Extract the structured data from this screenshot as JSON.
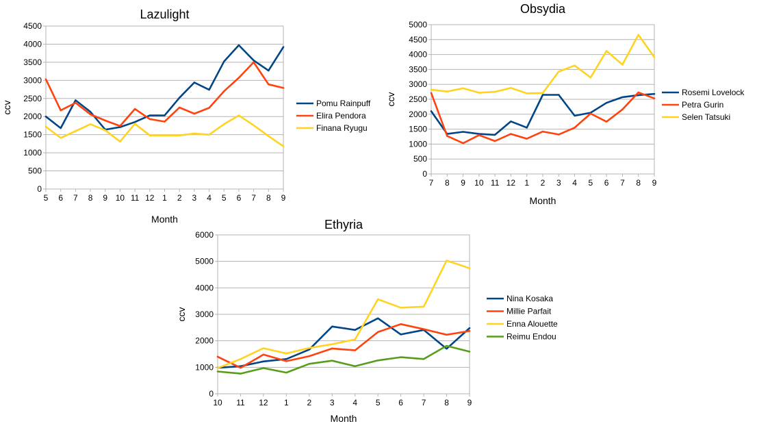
{
  "colors": {
    "blue": "#004586",
    "orange": "#ff420e",
    "yellow": "#ffd320",
    "green": "#579d1c",
    "grid": "#b3b3b3"
  },
  "chart_data": [
    {
      "type": "line",
      "title": "Lazulight",
      "xlabel": "Month",
      "ylabel": "ccv",
      "ylim": [
        0,
        4500
      ],
      "yticks": [
        0,
        500,
        1000,
        1500,
        2000,
        2500,
        3000,
        3500,
        4000,
        4500
      ],
      "grid": true,
      "legend": "right",
      "categories": [
        "5",
        "6",
        "7",
        "8",
        "9",
        "10",
        "11",
        "12",
        "1",
        "2",
        "3",
        "4",
        "5",
        "6",
        "7",
        "8",
        "9"
      ],
      "series": [
        {
          "name": "Pomu Rainpuff",
          "color": "#004586",
          "values": [
            2000,
            1680,
            2450,
            2130,
            1640,
            1710,
            1850,
            2030,
            2030,
            2520,
            2940,
            2740,
            3520,
            3970,
            3550,
            3270,
            3920
          ]
        },
        {
          "name": "Elira Pendora",
          "color": "#ff420e",
          "values": [
            3030,
            2170,
            2380,
            2060,
            1890,
            1740,
            2210,
            1930,
            1860,
            2250,
            2080,
            2240,
            2700,
            3070,
            3500,
            2890,
            2790
          ]
        },
        {
          "name": "Finana Ryugu",
          "color": "#ffd320",
          "values": [
            1720,
            1410,
            1600,
            1790,
            1620,
            1310,
            1800,
            1480,
            1480,
            1480,
            1530,
            1500,
            1790,
            2030,
            1760,
            1460,
            1180
          ]
        }
      ]
    },
    {
      "type": "line",
      "title": "Obsydia",
      "xlabel": "Month",
      "ylabel": "ccv",
      "ylim": [
        0,
        5000
      ],
      "yticks": [
        0,
        500,
        1000,
        1500,
        2000,
        2500,
        3000,
        3500,
        4000,
        4500,
        5000
      ],
      "grid": true,
      "legend": "right",
      "categories": [
        "7",
        "8",
        "9",
        "10",
        "11",
        "12",
        "1",
        "2",
        "3",
        "4",
        "5",
        "6",
        "7",
        "8",
        "9"
      ],
      "series": [
        {
          "name": "Rosemi Lovelock",
          "color": "#004586",
          "values": [
            2100,
            1340,
            1410,
            1340,
            1310,
            1760,
            1550,
            2650,
            2650,
            1950,
            2050,
            2380,
            2570,
            2640,
            2680
          ]
        },
        {
          "name": "Petra Gurin",
          "color": "#ff420e",
          "values": [
            2710,
            1270,
            1030,
            1300,
            1100,
            1340,
            1180,
            1420,
            1320,
            1550,
            2020,
            1750,
            2160,
            2730,
            2530
          ]
        },
        {
          "name": "Selen Tatsuki",
          "color": "#ffd320",
          "values": [
            2820,
            2760,
            2870,
            2720,
            2750,
            2880,
            2700,
            2710,
            3430,
            3630,
            3230,
            4120,
            3660,
            4660,
            3910
          ]
        }
      ]
    },
    {
      "type": "line",
      "title": "Ethyria",
      "xlabel": "Month",
      "ylabel": "ccv",
      "ylim": [
        0,
        6000
      ],
      "yticks": [
        0,
        1000,
        2000,
        3000,
        4000,
        5000,
        6000
      ],
      "grid": true,
      "legend": "right",
      "categories": [
        "10",
        "11",
        "12",
        "1",
        "2",
        "3",
        "4",
        "5",
        "6",
        "7",
        "8",
        "9"
      ],
      "series": [
        {
          "name": "Nina Kosaka",
          "color": "#004586",
          "values": [
            980,
            1040,
            1220,
            1310,
            1670,
            2540,
            2410,
            2850,
            2240,
            2410,
            1700,
            2480
          ]
        },
        {
          "name": "Millie Parfait",
          "color": "#ff420e",
          "values": [
            1400,
            980,
            1480,
            1230,
            1420,
            1710,
            1640,
            2330,
            2630,
            2440,
            2230,
            2370
          ]
        },
        {
          "name": "Enna Alouette",
          "color": "#ffd320",
          "values": [
            970,
            1310,
            1720,
            1520,
            1730,
            1870,
            2050,
            3570,
            3250,
            3290,
            5030,
            4740
          ]
        },
        {
          "name": "Reimu Endou",
          "color": "#579d1c",
          "values": [
            840,
            760,
            970,
            800,
            1130,
            1250,
            1040,
            1260,
            1380,
            1310,
            1810,
            1590
          ]
        }
      ]
    }
  ]
}
